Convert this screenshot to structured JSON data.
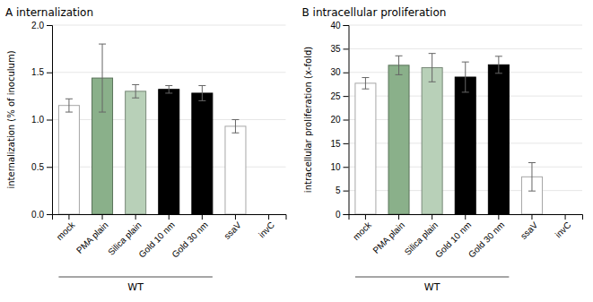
{
  "chart_data": [
    {
      "type": "bar",
      "title": "A  internalization",
      "ylabel": "internalization (% of inoculum)",
      "categories": [
        "mock",
        "PMA plain",
        "Silica plain",
        "Gold 10 nm",
        "Gold 30 nm",
        "ssaV",
        "invC"
      ],
      "values": [
        1.15,
        1.44,
        1.3,
        1.32,
        1.28,
        0.93,
        0.0
      ],
      "errors": [
        0.07,
        0.36,
        0.07,
        0.04,
        0.08,
        0.07,
        0.0
      ],
      "colors": [
        "#ffffff",
        "#8ab08a",
        "#b8d0b8",
        "#000000",
        "#000000",
        "#ffffff",
        "#ffffff"
      ],
      "ylim": [
        0,
        2.0
      ],
      "yticks": [
        {
          "value": 0.0,
          "label": "0.0"
        },
        0.5,
        {
          "value": 1.0,
          "label": "1.0"
        },
        1.5,
        {
          "value": 2.0,
          "label": "2.0"
        }
      ],
      "annotations": [
        {
          "text": "WT",
          "x": [
            "mock",
            "Gold 30 nm"
          ]
        }
      ]
    },
    {
      "type": "bar",
      "title": "B  intracellular proliferation",
      "ylabel": "intracellular proliferation (x-fold)",
      "categories": [
        "mock",
        "PMA plain",
        "Silica plain",
        "Gold 10 nm",
        "Gold 30 nm",
        "ssaV",
        "invC"
      ],
      "values": [
        27.7,
        31.5,
        31.0,
        29.0,
        31.6,
        7.9,
        0.0
      ],
      "errors": [
        1.2,
        2.0,
        3.0,
        3.2,
        1.8,
        3.0,
        0.0
      ],
      "colors": [
        "#ffffff",
        "#8ab08a",
        "#b8d0b8",
        "#000000",
        "#000000",
        "#ffffff",
        "#ffffff"
      ],
      "ylim": [
        0,
        40
      ],
      "yticks": [
        0,
        5,
        10,
        15,
        20,
        25,
        30,
        35,
        40
      ],
      "annotations": [
        {
          "text": "WT",
          "x": [
            "mock",
            "Gold 30 nm"
          ]
        }
      ]
    }
  ]
}
